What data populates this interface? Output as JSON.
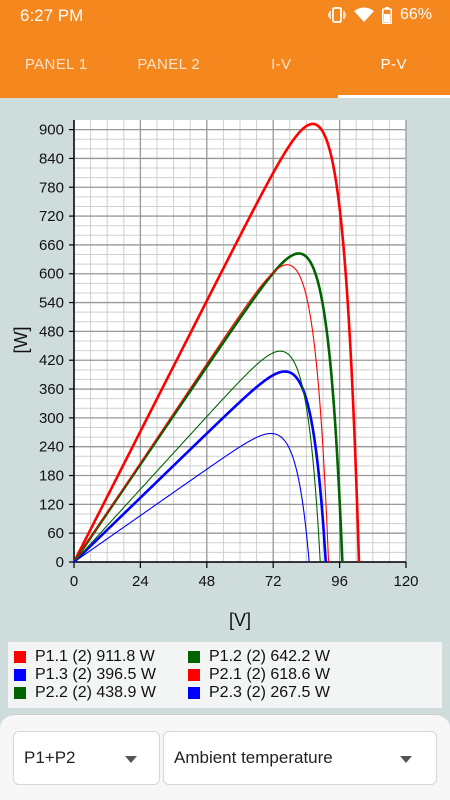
{
  "status_bar": {
    "time": "6:27 PM",
    "battery": "66%",
    "icons": [
      "vibrate-icon",
      "wifi-icon",
      "battery-icon"
    ]
  },
  "tabs": [
    {
      "label": "PANEL 1",
      "active": false
    },
    {
      "label": "PANEL 2",
      "active": false
    },
    {
      "label": "I-V",
      "active": false
    },
    {
      "label": "P-V",
      "active": true
    }
  ],
  "colors": {
    "orange": "#f5871f",
    "red": "#ff0000",
    "green": "#006400",
    "blue": "#0000ff"
  },
  "chart_data": {
    "type": "line",
    "xlabel": "[V]",
    "ylabel": "[W]",
    "xlim": [
      0,
      120
    ],
    "ylim": [
      0,
      920
    ],
    "xticks": [
      0,
      24,
      48,
      72,
      96,
      120
    ],
    "yticks": [
      0,
      60,
      120,
      180,
      240,
      300,
      360,
      420,
      480,
      540,
      600,
      660,
      720,
      780,
      840,
      900
    ],
    "grid": true,
    "legend_placement": "bottom",
    "series": [
      {
        "name": "P1.1 (2) 911.8 W",
        "color": "#ff0000",
        "thick": true,
        "vmp": 86.5,
        "pmax": 911.8,
        "voc": 103
      },
      {
        "name": "P1.2 (2) 642.2 W",
        "color": "#006400",
        "thick": true,
        "vmp": 81.0,
        "pmax": 642.2,
        "voc": 97
      },
      {
        "name": "P1.3 (2) 396.5 W",
        "color": "#0000ff",
        "thick": true,
        "vmp": 76.5,
        "pmax": 396.5,
        "voc": 91
      },
      {
        "name": "P2.1 (2) 618.6 W",
        "color": "#ff0000",
        "thick": false,
        "vmp": 80.5,
        "pmax": 618.6,
        "voc": 92
      },
      {
        "name": "P2.2 (2) 438.9 W",
        "color": "#006400",
        "thick": false,
        "vmp": 78.0,
        "pmax": 438.9,
        "voc": 89
      },
      {
        "name": "P2.3 (2) 267.5 W",
        "color": "#0000ff",
        "thick": false,
        "vmp": 72.5,
        "pmax": 267.5,
        "voc": 85
      }
    ]
  },
  "legend": [
    {
      "label": "P1.1 (2) 911.8 W",
      "color": "#ff0000"
    },
    {
      "label": "P1.2 (2) 642.2 W",
      "color": "#006400"
    },
    {
      "label": "P1.3 (2) 396.5 W",
      "color": "#0000ff"
    },
    {
      "label": "P2.1 (2) 618.6 W",
      "color": "#ff0000"
    },
    {
      "label": "P2.2 (2) 438.9 W",
      "color": "#006400"
    },
    {
      "label": "P2.3 (2) 267.5 W",
      "color": "#0000ff"
    }
  ],
  "controls": {
    "group_select": {
      "value": "P1+P2"
    },
    "parameter_select": {
      "value": "Ambient temperature"
    }
  }
}
